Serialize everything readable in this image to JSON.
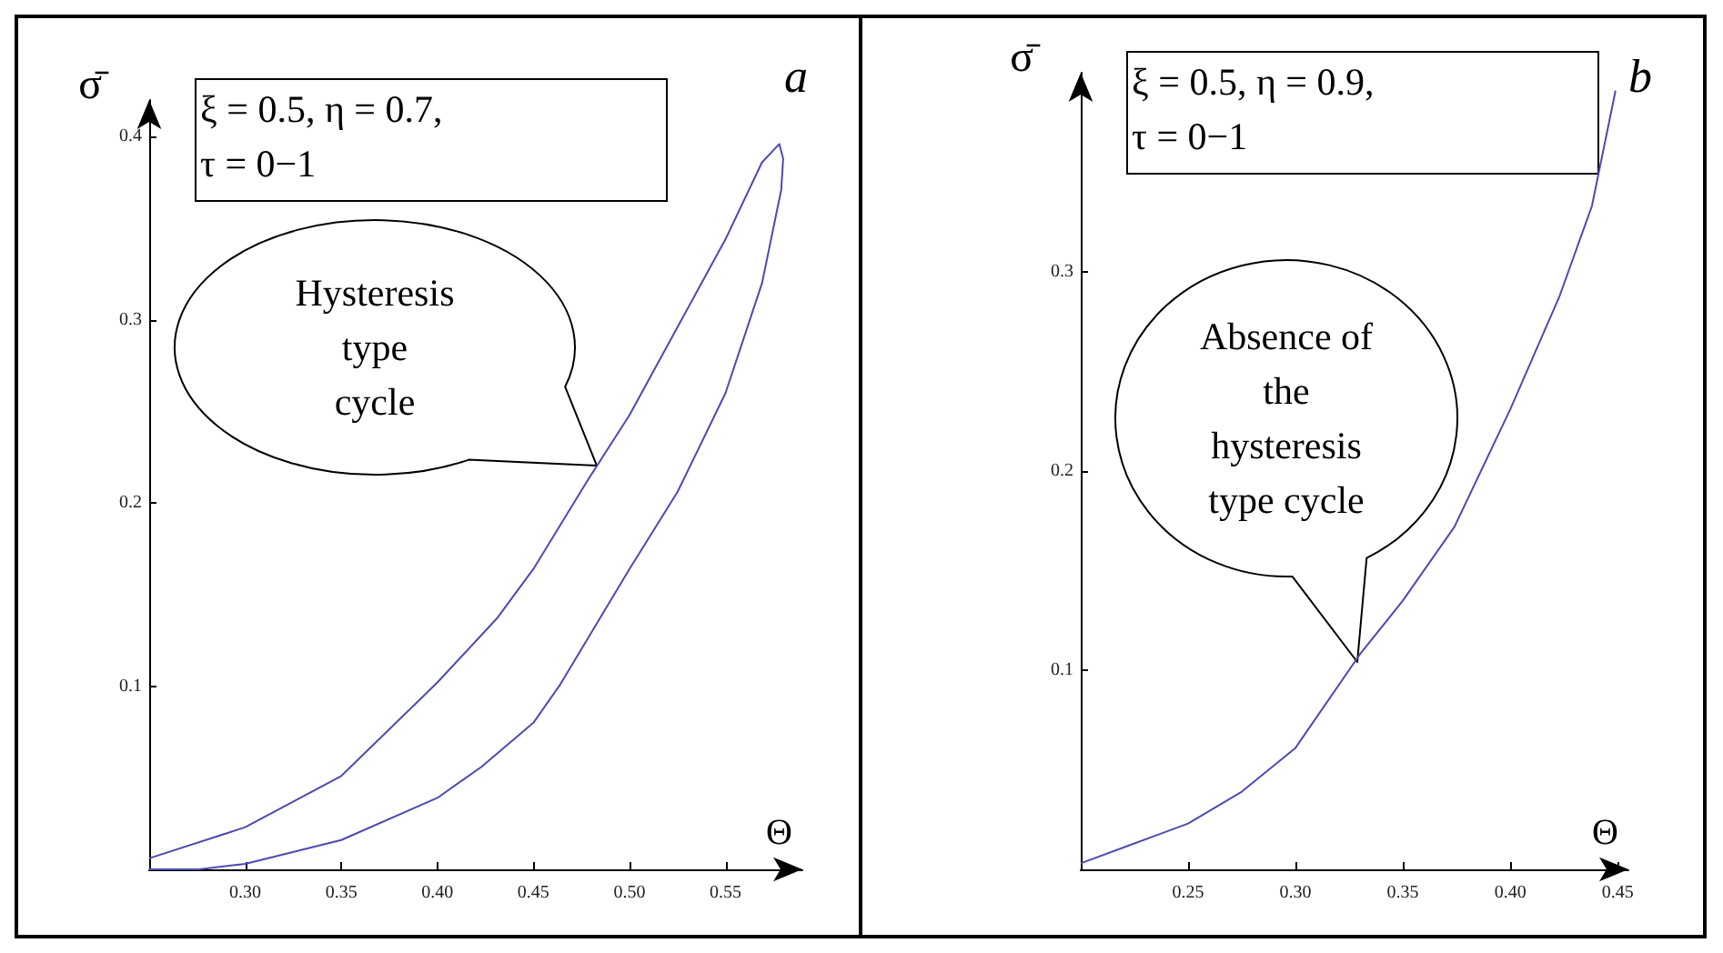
{
  "chart_data": [
    {
      "type": "line",
      "title": "a",
      "xlabel": "Θ",
      "ylabel": "σ̄",
      "xlim": [
        0.25,
        0.59
      ],
      "ylim": [
        0,
        0.42
      ],
      "xticks": [
        {
          "value": 0.3,
          "label": "0.30"
        },
        {
          "value": 0.35,
          "label": "0.35"
        },
        {
          "value": 0.4,
          "label": "0.40"
        },
        {
          "value": 0.45,
          "label": "0.45"
        },
        {
          "value": 0.5,
          "label": "0.50"
        },
        {
          "value": 0.55,
          "label": "0.55"
        }
      ],
      "yticks": [
        0.1,
        0.2,
        0.3,
        0.4
      ],
      "grid": false,
      "marker": "none",
      "line_style": "solid",
      "series": [
        {
          "color": "#4b4bb0",
          "x": [
            0.25,
            0.3,
            0.35,
            0.4,
            0.431,
            0.45,
            0.478,
            0.5,
            0.525,
            0.55,
            0.569,
            0.578,
            0.58,
            0.579,
            0.569,
            0.55,
            0.525,
            0.5,
            0.464,
            0.45,
            0.423,
            0.4,
            0.35,
            0.3,
            0.276,
            0.25
          ],
          "values": [
            0.006,
            0.023,
            0.051,
            0.102,
            0.137,
            0.164,
            0.212,
            0.248,
            0.296,
            0.344,
            0.386,
            0.396,
            0.388,
            0.371,
            0.32,
            0.26,
            0.206,
            0.164,
            0.101,
            0.08,
            0.056,
            0.039,
            0.016,
            0.003,
            0,
            0
          ]
        }
      ],
      "annotations": [
        "ξ = 0.5, η = 0.7,\nτ = 0−1",
        "Hysteresis\ntype\ncycle"
      ]
    },
    {
      "type": "line",
      "title": "b",
      "xlabel": "Θ",
      "ylabel": "σ̄",
      "xlim": [
        0.2,
        0.455
      ],
      "ylim": [
        0,
        0.4
      ],
      "xticks": [
        {
          "value": 0.25,
          "label": "0.25"
        },
        {
          "value": 0.3,
          "label": "0.30"
        },
        {
          "value": 0.35,
          "label": "0.35"
        },
        {
          "value": 0.4,
          "label": "0.40"
        },
        {
          "value": 0.45,
          "label": "0.45"
        }
      ],
      "yticks": [
        0.1,
        0.2,
        0.3
      ],
      "grid": false,
      "marker": "none",
      "line_style": "solid",
      "series": [
        {
          "color": "#4b4bb0",
          "x": [
            0.2,
            0.225,
            0.25,
            0.275,
            0.3,
            0.33,
            0.35,
            0.374,
            0.4,
            0.423,
            0.438,
            0.449
          ],
          "values": [
            0.003,
            0.013,
            0.023,
            0.039,
            0.061,
            0.108,
            0.135,
            0.172,
            0.231,
            0.288,
            0.333,
            0.391
          ]
        }
      ],
      "annotations": [
        "ξ = 0.5, η = 0.9,\nτ = 0−1",
        "Absence of\nthe\nhysteresis\ntype cycle"
      ]
    }
  ]
}
